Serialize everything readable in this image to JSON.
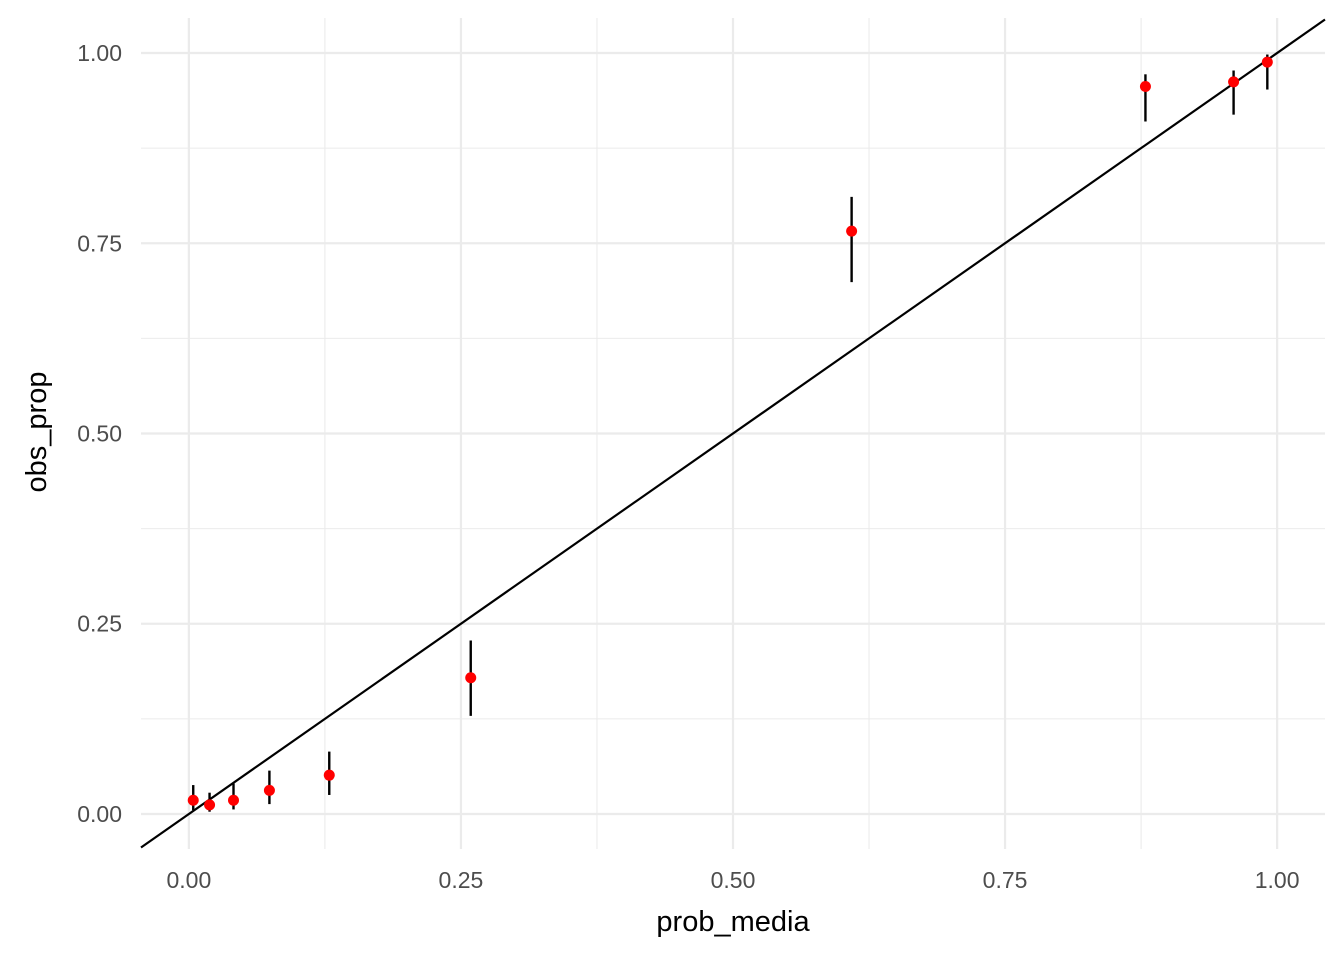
{
  "chart_data": {
    "type": "scatter",
    "title": "",
    "xlabel": "prob_media",
    "ylabel": "obs_prop",
    "xlim": [
      -0.044,
      1.044
    ],
    "ylim": [
      -0.046,
      1.046
    ],
    "x_ticks": [
      0.0,
      0.25,
      0.5,
      0.75,
      1.0
    ],
    "x_tick_labels": [
      "0.00",
      "0.25",
      "0.50",
      "0.75",
      "1.00"
    ],
    "y_ticks": [
      0.0,
      0.25,
      0.5,
      0.75,
      1.0
    ],
    "y_tick_labels": [
      "0.00",
      "0.25",
      "0.50",
      "0.75",
      "1.00"
    ],
    "x_minor_ticks": [
      0.125,
      0.375,
      0.625,
      0.875
    ],
    "y_minor_ticks": [
      0.125,
      0.375,
      0.625,
      0.875
    ],
    "grid": true,
    "reference_line": {
      "intercept": 0,
      "slope": 1,
      "color": "#000000"
    },
    "point_color": "#ff0000",
    "errorbar_color": "#000000",
    "grid_color": "#ebebeb",
    "points": [
      {
        "x": 0.004,
        "y": 0.018,
        "ymin": 0.005,
        "ymax": 0.038
      },
      {
        "x": 0.019,
        "y": 0.012,
        "ymin": 0.003,
        "ymax": 0.028
      },
      {
        "x": 0.041,
        "y": 0.018,
        "ymin": 0.006,
        "ymax": 0.04
      },
      {
        "x": 0.074,
        "y": 0.031,
        "ymin": 0.013,
        "ymax": 0.057
      },
      {
        "x": 0.129,
        "y": 0.051,
        "ymin": 0.025,
        "ymax": 0.082
      },
      {
        "x": 0.259,
        "y": 0.179,
        "ymin": 0.129,
        "ymax": 0.228
      },
      {
        "x": 0.609,
        "y": 0.766,
        "ymin": 0.699,
        "ymax": 0.811
      },
      {
        "x": 0.879,
        "y": 0.956,
        "ymin": 0.91,
        "ymax": 0.972
      },
      {
        "x": 0.96,
        "y": 0.962,
        "ymin": 0.919,
        "ymax": 0.977
      },
      {
        "x": 0.991,
        "y": 0.988,
        "ymin": 0.952,
        "ymax": 0.998
      }
    ]
  }
}
